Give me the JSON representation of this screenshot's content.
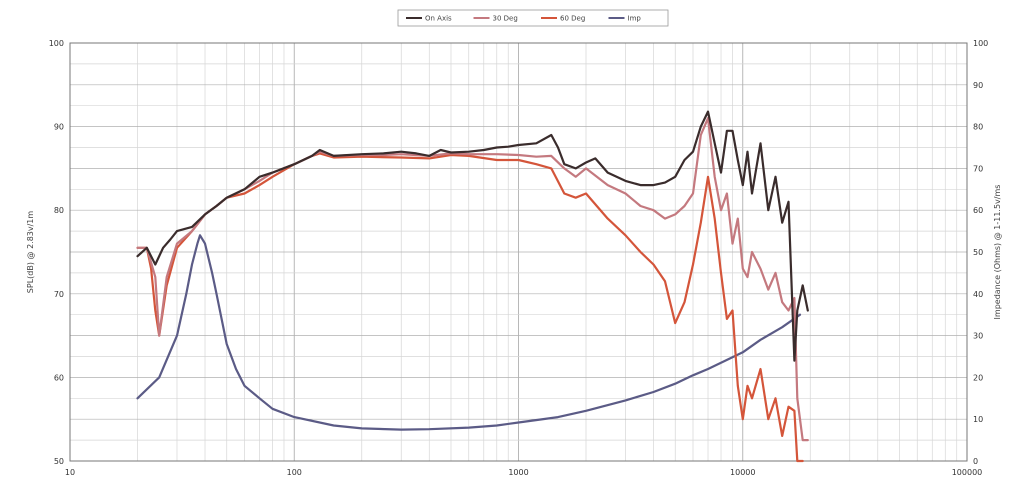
{
  "chart_data": {
    "type": "line",
    "title": "",
    "xlabel": "",
    "ylabel": "SPL(dB) @ 2.83v/1m",
    "ylabel_right": "Impedance (Ohms) @ 1-11.5v/ms",
    "x_scale": "log",
    "xlim": [
      10,
      100000
    ],
    "ylim": [
      50,
      100
    ],
    "ylim_right": [
      0,
      100
    ],
    "grid": true,
    "legend_position": "top-center",
    "x_ticks": [
      "10",
      "100",
      "1000",
      "10000",
      "100000"
    ],
    "y_ticks": [
      "50",
      "60",
      "70",
      "80",
      "90",
      "100"
    ],
    "y_ticks_right": [
      "0",
      "10",
      "20",
      "30",
      "40",
      "50",
      "60",
      "70",
      "80",
      "90",
      "100"
    ],
    "series": [
      {
        "name": "On Axis",
        "color": "#3a2c2c",
        "axis": "left",
        "points": [
          [
            20,
            74.5
          ],
          [
            22,
            75.5
          ],
          [
            24,
            73.5
          ],
          [
            26,
            75.5
          ],
          [
            28,
            76.5
          ],
          [
            30,
            77.5
          ],
          [
            35,
            78
          ],
          [
            40,
            79.5
          ],
          [
            45,
            80.5
          ],
          [
            50,
            81.5
          ],
          [
            60,
            82.5
          ],
          [
            70,
            84
          ],
          [
            80,
            84.5
          ],
          [
            100,
            85.5
          ],
          [
            120,
            86.5
          ],
          [
            130,
            87.2
          ],
          [
            150,
            86.5
          ],
          [
            200,
            86.7
          ],
          [
            250,
            86.8
          ],
          [
            300,
            87
          ],
          [
            350,
            86.8
          ],
          [
            400,
            86.5
          ],
          [
            450,
            87.2
          ],
          [
            500,
            86.9
          ],
          [
            600,
            87
          ],
          [
            700,
            87.2
          ],
          [
            800,
            87.5
          ],
          [
            900,
            87.6
          ],
          [
            1000,
            87.8
          ],
          [
            1200,
            88
          ],
          [
            1400,
            89
          ],
          [
            1500,
            87.5
          ],
          [
            1600,
            85.5
          ],
          [
            1800,
            85
          ],
          [
            2000,
            85.7
          ],
          [
            2200,
            86.2
          ],
          [
            2500,
            84.5
          ],
          [
            3000,
            83.5
          ],
          [
            3500,
            83
          ],
          [
            4000,
            83
          ],
          [
            4500,
            83.3
          ],
          [
            5000,
            84
          ],
          [
            5500,
            86
          ],
          [
            6000,
            87
          ],
          [
            6500,
            90
          ],
          [
            7000,
            91.8
          ],
          [
            7500,
            88
          ],
          [
            8000,
            84.5
          ],
          [
            8500,
            89.5
          ],
          [
            9000,
            89.5
          ],
          [
            9500,
            86
          ],
          [
            10000,
            83
          ],
          [
            10500,
            87
          ],
          [
            11000,
            82
          ],
          [
            12000,
            88
          ],
          [
            13000,
            80
          ],
          [
            14000,
            84
          ],
          [
            15000,
            78.5
          ],
          [
            16000,
            81
          ],
          [
            17000,
            62
          ],
          [
            17500,
            68
          ],
          [
            18500,
            71
          ],
          [
            19500,
            68
          ]
        ]
      },
      {
        "name": "30 Deg",
        "color": "#c4797f",
        "axis": "left",
        "points": [
          [
            20,
            75.5
          ],
          [
            22,
            75.5
          ],
          [
            24,
            72
          ],
          [
            25,
            65
          ],
          [
            27,
            72
          ],
          [
            30,
            76
          ],
          [
            35,
            77.5
          ],
          [
            40,
            79.5
          ],
          [
            45,
            80.5
          ],
          [
            50,
            81.5
          ],
          [
            60,
            82.5
          ],
          [
            70,
            83.5
          ],
          [
            80,
            84.5
          ],
          [
            100,
            85.5
          ],
          [
            120,
            86.5
          ],
          [
            130,
            87
          ],
          [
            150,
            86.5
          ],
          [
            200,
            86.6
          ],
          [
            250,
            86.6
          ],
          [
            300,
            86.7
          ],
          [
            400,
            86.5
          ],
          [
            500,
            86.8
          ],
          [
            600,
            86.7
          ],
          [
            800,
            86.7
          ],
          [
            1000,
            86.6
          ],
          [
            1200,
            86.4
          ],
          [
            1400,
            86.5
          ],
          [
            1600,
            85
          ],
          [
            1800,
            84
          ],
          [
            2000,
            85
          ],
          [
            2500,
            83
          ],
          [
            3000,
            82
          ],
          [
            3500,
            80.5
          ],
          [
            4000,
            80
          ],
          [
            4500,
            79
          ],
          [
            5000,
            79.5
          ],
          [
            5500,
            80.5
          ],
          [
            6000,
            82
          ],
          [
            6500,
            89
          ],
          [
            7000,
            91
          ],
          [
            7500,
            84
          ],
          [
            8000,
            80
          ],
          [
            8500,
            82
          ],
          [
            9000,
            76
          ],
          [
            9500,
            79
          ],
          [
            10000,
            73
          ],
          [
            10500,
            72
          ],
          [
            11000,
            75
          ],
          [
            12000,
            73
          ],
          [
            13000,
            70.5
          ],
          [
            14000,
            72.5
          ],
          [
            15000,
            69
          ],
          [
            16000,
            68
          ],
          [
            17000,
            69.5
          ],
          [
            17500,
            57.5
          ],
          [
            18500,
            52.5
          ],
          [
            19500,
            52.5
          ]
        ]
      },
      {
        "name": "60 Deg",
        "color": "#d4553a",
        "axis": "left",
        "points": [
          [
            20,
            75.5
          ],
          [
            22,
            75.5
          ],
          [
            23,
            73
          ],
          [
            24,
            68
          ],
          [
            25,
            65
          ],
          [
            27,
            71
          ],
          [
            30,
            75.5
          ],
          [
            35,
            77.5
          ],
          [
            40,
            79.5
          ],
          [
            45,
            80.5
          ],
          [
            50,
            81.5
          ],
          [
            60,
            82
          ],
          [
            70,
            83
          ],
          [
            80,
            84
          ],
          [
            100,
            85.5
          ],
          [
            120,
            86.5
          ],
          [
            130,
            86.8
          ],
          [
            150,
            86.3
          ],
          [
            200,
            86.4
          ],
          [
            300,
            86.3
          ],
          [
            400,
            86.2
          ],
          [
            500,
            86.6
          ],
          [
            600,
            86.5
          ],
          [
            800,
            86
          ],
          [
            1000,
            86
          ],
          [
            1200,
            85.5
          ],
          [
            1400,
            85
          ],
          [
            1600,
            82
          ],
          [
            1800,
            81.5
          ],
          [
            2000,
            82
          ],
          [
            2500,
            79
          ],
          [
            3000,
            77
          ],
          [
            3500,
            75
          ],
          [
            4000,
            73.5
          ],
          [
            4500,
            71.5
          ],
          [
            5000,
            66.5
          ],
          [
            5500,
            69
          ],
          [
            6000,
            73.5
          ],
          [
            6500,
            78.5
          ],
          [
            7000,
            84
          ],
          [
            7500,
            79
          ],
          [
            8000,
            72.5
          ],
          [
            8500,
            67
          ],
          [
            9000,
            68
          ],
          [
            9500,
            59
          ],
          [
            10000,
            55
          ],
          [
            10500,
            59
          ],
          [
            11000,
            57.5
          ],
          [
            12000,
            61
          ],
          [
            13000,
            55
          ],
          [
            14000,
            57.5
          ],
          [
            15000,
            53
          ],
          [
            16000,
            56.5
          ],
          [
            17000,
            56
          ],
          [
            17500,
            50
          ],
          [
            18500,
            50
          ]
        ]
      },
      {
        "name": "Imp",
        "color": "#5b5b86",
        "axis": "right",
        "points": [
          [
            20,
            15
          ],
          [
            25,
            20
          ],
          [
            30,
            30
          ],
          [
            33,
            40
          ],
          [
            35,
            47
          ],
          [
            37,
            52
          ],
          [
            38,
            54
          ],
          [
            40,
            52
          ],
          [
            43,
            45
          ],
          [
            45,
            40
          ],
          [
            50,
            28
          ],
          [
            55,
            22
          ],
          [
            60,
            18
          ],
          [
            70,
            15
          ],
          [
            80,
            12.5
          ],
          [
            100,
            10.5
          ],
          [
            150,
            8.5
          ],
          [
            200,
            7.8
          ],
          [
            300,
            7.5
          ],
          [
            400,
            7.6
          ],
          [
            600,
            8
          ],
          [
            800,
            8.5
          ],
          [
            1000,
            9.2
          ],
          [
            1500,
            10.5
          ],
          [
            2000,
            12
          ],
          [
            3000,
            14.5
          ],
          [
            4000,
            16.5
          ],
          [
            5000,
            18.5
          ],
          [
            6000,
            20.5
          ],
          [
            7000,
            22
          ],
          [
            8000,
            23.5
          ],
          [
            10000,
            26
          ],
          [
            12000,
            29
          ],
          [
            15000,
            32
          ],
          [
            18000,
            35
          ]
        ]
      }
    ]
  }
}
